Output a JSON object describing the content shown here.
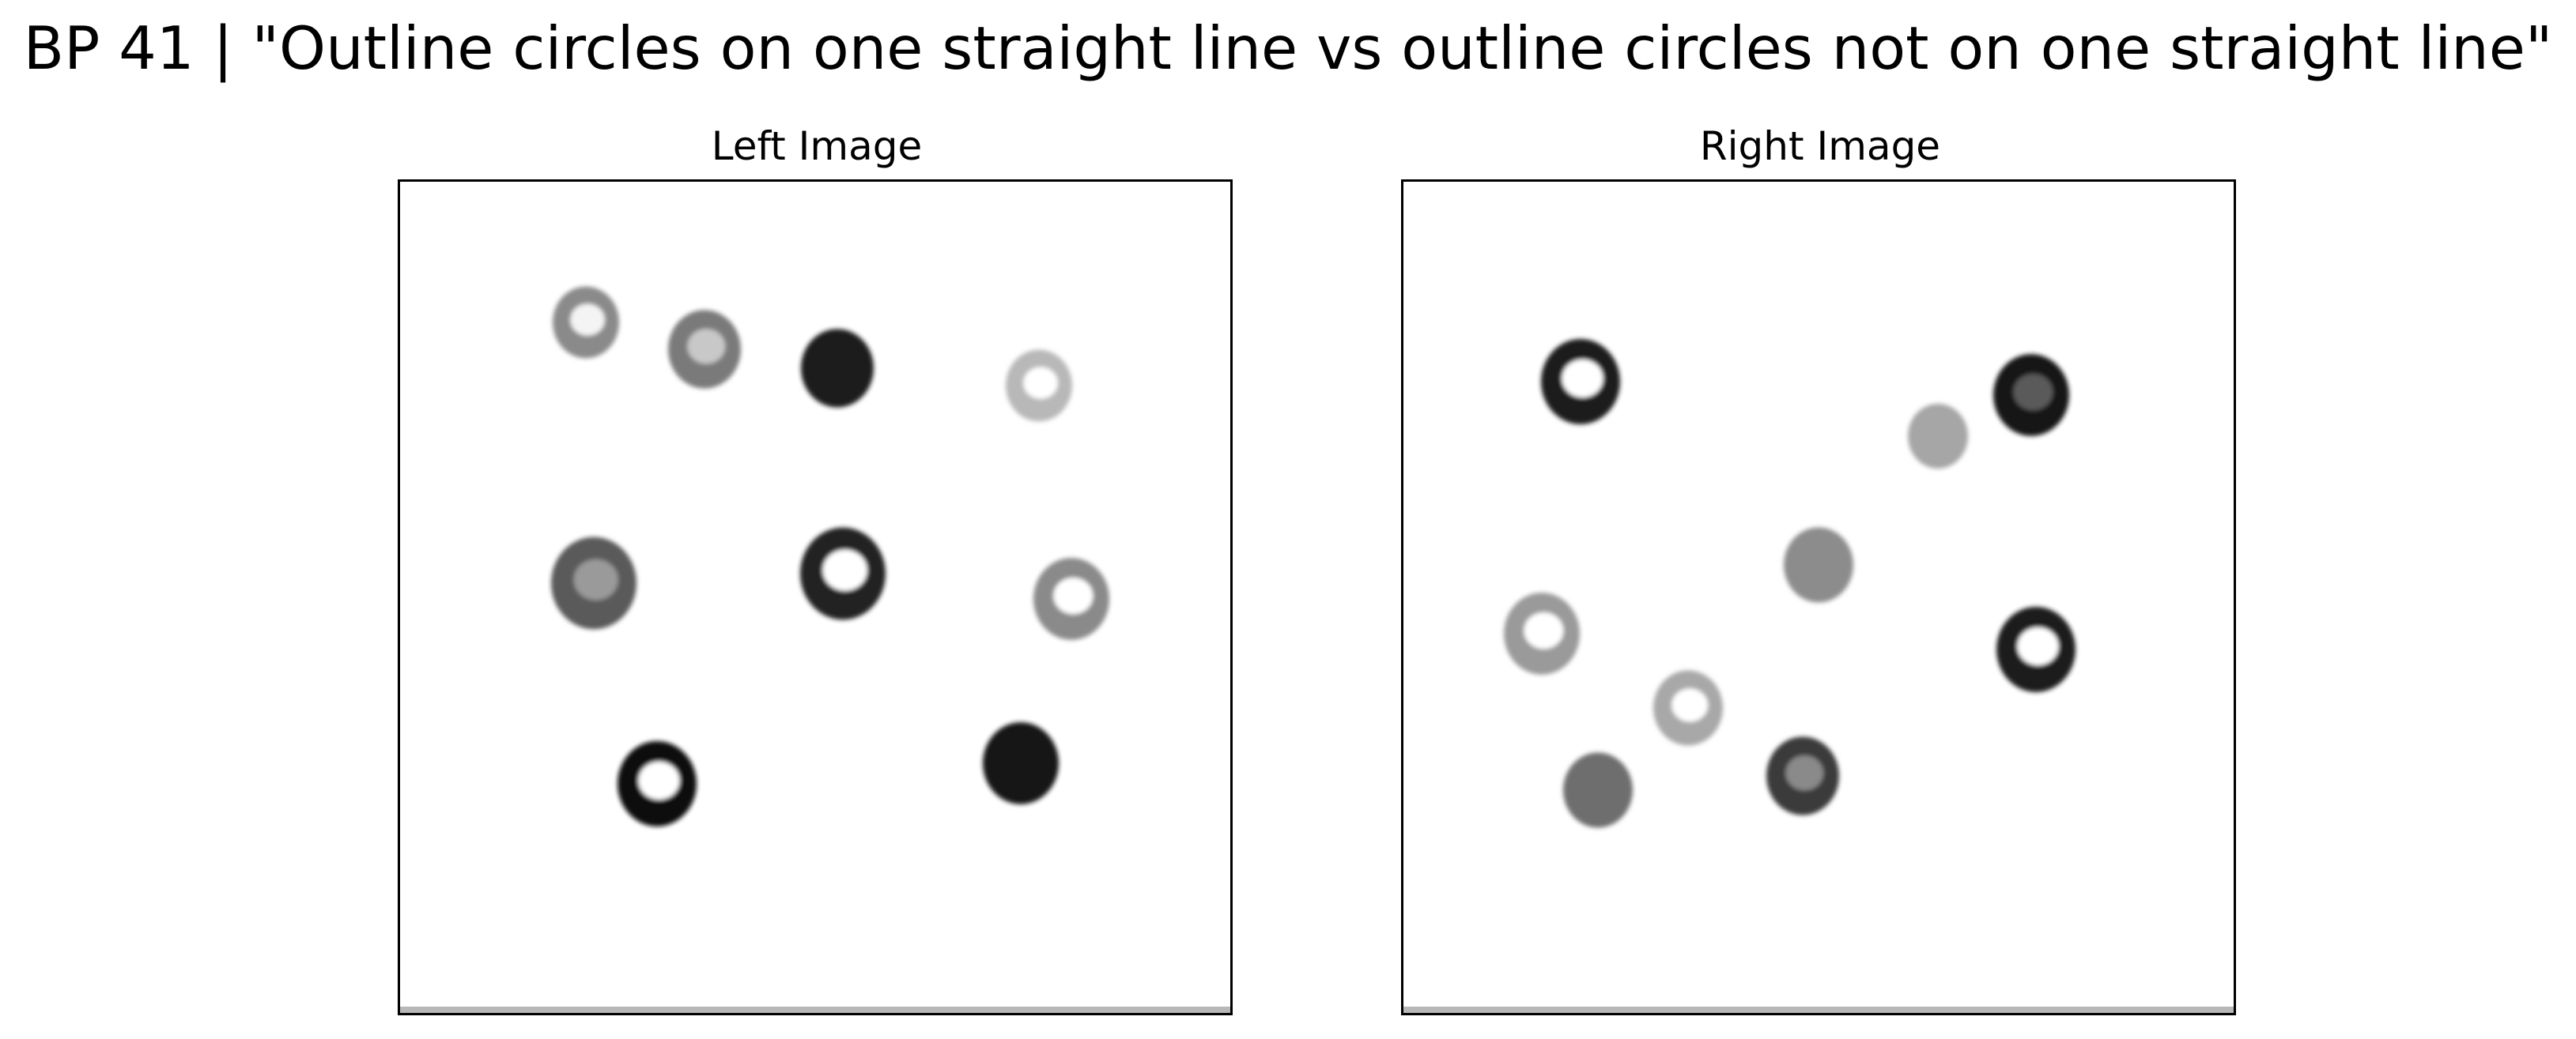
{
  "title": "BP 41 | \"Outline circles on one straight line vs outline circles not on one straight line\"",
  "panels": {
    "left": {
      "label": "Left Image",
      "circles": [
        {
          "kind": "ring",
          "shade": "#8a8a8a",
          "inner": "#f4f4f4"
        },
        {
          "kind": "ring",
          "shade": "#7a7a7a",
          "inner": "#c8c8c8"
        },
        {
          "kind": "filled",
          "shade": "#1a1a1a",
          "inner": "#1a1a1a"
        },
        {
          "kind": "ring",
          "shade": "#b8b8b8",
          "inner": "#ffffff"
        },
        {
          "kind": "ring",
          "shade": "#5a5a5a",
          "inner": "#9a9a9a"
        },
        {
          "kind": "ring",
          "shade": "#222222",
          "inner": "#ffffff"
        },
        {
          "kind": "ring",
          "shade": "#8a8a8a",
          "inner": "#ffffff"
        },
        {
          "kind": "ring",
          "shade": "#111111",
          "inner": "#ffffff"
        },
        {
          "kind": "filled",
          "shade": "#141414",
          "inner": "#141414"
        }
      ]
    },
    "right": {
      "label": "Right Image",
      "circles": [
        {
          "kind": "ring",
          "shade": "#1e1e1e",
          "inner": "#ffffff"
        },
        {
          "kind": "filled",
          "shade": "#a6a6a6",
          "inner": "#a6a6a6"
        },
        {
          "kind": "ring",
          "shade": "#151515",
          "inner": "#5a5a5a"
        },
        {
          "kind": "filled",
          "shade": "#8c8c8c",
          "inner": "#8c8c8c"
        },
        {
          "kind": "ring",
          "shade": "#9a9a9a",
          "inner": "#ffffff"
        },
        {
          "kind": "ring",
          "shade": "#1a1a1a",
          "inner": "#ffffff"
        },
        {
          "kind": "ring",
          "shade": "#a8a8a8",
          "inner": "#ffffff"
        },
        {
          "kind": "filled",
          "shade": "#6e6e6e",
          "inner": "#6e6e6e"
        },
        {
          "kind": "ring",
          "shade": "#3a3a3a",
          "inner": "#8a8a8a"
        }
      ]
    }
  }
}
